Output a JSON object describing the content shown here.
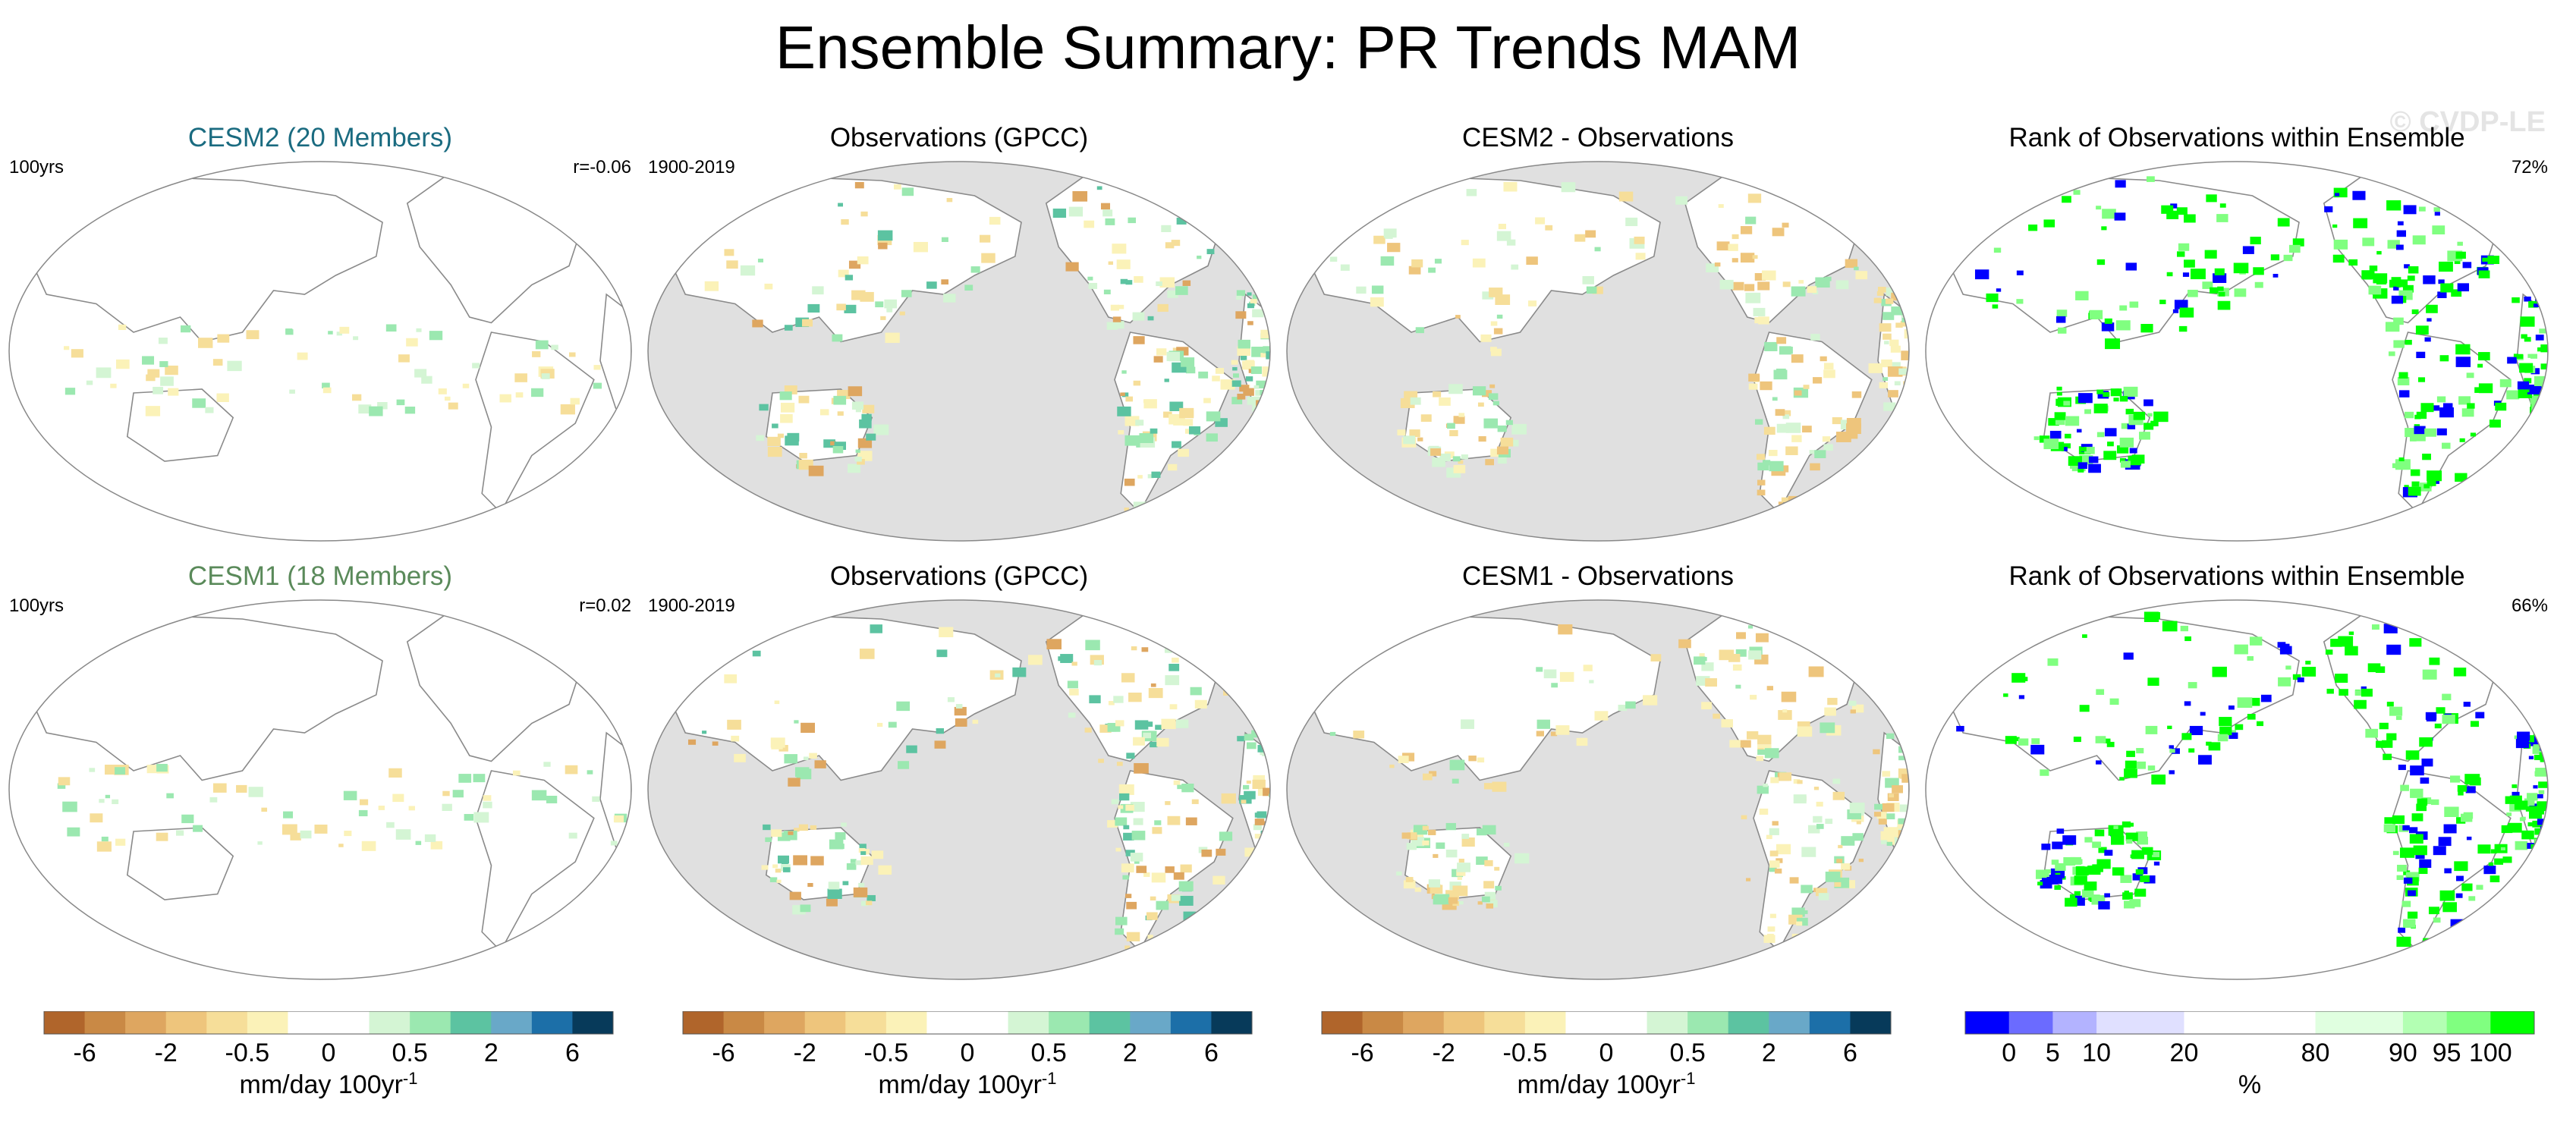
{
  "title": "Ensemble Summary: PR Trends MAM",
  "watermark": "© CVDP-LE",
  "rows": [
    {
      "panels": [
        {
          "title": "CESM2 (20 Members)",
          "title_color": "#1a6b80",
          "left_label": "100yrs",
          "right_label": "r=-0.06",
          "kind": "model"
        },
        {
          "title": "Observations (GPCC)",
          "title_color": "#000000",
          "left_label": "1900-2019",
          "right_label": "",
          "kind": "obs"
        },
        {
          "title": "CESM2 - Observations",
          "title_color": "#000000",
          "left_label": "",
          "right_label": "",
          "kind": "diff"
        },
        {
          "title": "Rank of Observations within Ensemble",
          "title_color": "#000000",
          "left_label": "",
          "right_label": "72%",
          "kind": "rank"
        }
      ]
    },
    {
      "panels": [
        {
          "title": "CESM1 (18 Members)",
          "title_color": "#5a8a5a",
          "left_label": "100yrs",
          "right_label": "r=0.02",
          "kind": "model"
        },
        {
          "title": "Observations (GPCC)",
          "title_color": "#000000",
          "left_label": "1900-2019",
          "right_label": "",
          "kind": "obs"
        },
        {
          "title": "CESM1 - Observations",
          "title_color": "#000000",
          "left_label": "",
          "right_label": "",
          "kind": "diff"
        },
        {
          "title": "Rank of Observations within Ensemble",
          "title_color": "#000000",
          "left_label": "",
          "right_label": "66%",
          "kind": "rank"
        }
      ]
    }
  ],
  "colorbars": [
    {
      "colors": [
        "#b0652b",
        "#c98945",
        "#dea660",
        "#eec57c",
        "#f6de99",
        "#fbf2b8",
        "#ffffff",
        "#ffffff",
        "#d4f5d4",
        "#9be8b0",
        "#5cc3a1",
        "#69a8c8",
        "#1c6fa8",
        "#073a5a"
      ],
      "tick_labels": [
        "-6",
        "-2",
        "-0.5",
        "0",
        "0.5",
        "2",
        "6"
      ],
      "tick_boundaries": [
        1,
        3,
        5,
        7,
        9,
        11,
        13
      ],
      "unit": "mm/day 100yr",
      "unit_sup": "-1"
    },
    {
      "colors": [
        "#b0652b",
        "#c98945",
        "#dea660",
        "#eec57c",
        "#f6de99",
        "#fbf2b8",
        "#ffffff",
        "#ffffff",
        "#d4f5d4",
        "#9be8b0",
        "#5cc3a1",
        "#69a8c8",
        "#1c6fa8",
        "#073a5a"
      ],
      "tick_labels": [
        "-6",
        "-2",
        "-0.5",
        "0",
        "0.5",
        "2",
        "6"
      ],
      "tick_boundaries": [
        1,
        3,
        5,
        7,
        9,
        11,
        13
      ],
      "unit": "mm/day 100yr",
      "unit_sup": "-1"
    },
    {
      "colors": [
        "#b0652b",
        "#c98945",
        "#dea660",
        "#eec57c",
        "#f6de99",
        "#fbf2b8",
        "#ffffff",
        "#ffffff",
        "#d4f5d4",
        "#9be8b0",
        "#5cc3a1",
        "#69a8c8",
        "#1c6fa8",
        "#073a5a"
      ],
      "tick_labels": [
        "-6",
        "-2",
        "-0.5",
        "0",
        "0.5",
        "2",
        "6"
      ],
      "tick_boundaries": [
        1,
        3,
        5,
        7,
        9,
        11,
        13
      ],
      "unit": "mm/day 100yr",
      "unit_sup": "-1"
    },
    {
      "colors": [
        "#0000ff",
        "#6b6bff",
        "#b3b3ff",
        "#e0e0ff",
        "#e0e0ff",
        "#ffffff",
        "#ffffff",
        "#ffffff",
        "#e0ffe0",
        "#e0ffe0",
        "#b3ffb3",
        "#80ff80",
        "#00ff00"
      ],
      "tick_labels": [
        "0",
        "5",
        "10",
        "20",
        "80",
        "90",
        "95",
        "100"
      ],
      "tick_boundaries": [
        1,
        2,
        3,
        5,
        8,
        10,
        11,
        12
      ],
      "unit": "%",
      "unit_sup": ""
    }
  ],
  "chart_data": {
    "type": "map",
    "title": "Ensemble Summary: PR Trends MAM",
    "variable": "Precipitation trend, March-April-May",
    "units": "mm/day 100yr-1",
    "colorbar_levels": [
      -6,
      -2,
      -0.5,
      0,
      0.5,
      2,
      6
    ],
    "rank_levels_percent": [
      0,
      5,
      10,
      20,
      80,
      90,
      95,
      100
    ],
    "panels": [
      {
        "row": 1,
        "title": "CESM2 (20 Members)",
        "period": "100yrs",
        "pattern_correlation": -0.06
      },
      {
        "row": 1,
        "title": "Observations (GPCC)",
        "period": "1900-2019"
      },
      {
        "row": 1,
        "title": "CESM2 - Observations"
      },
      {
        "row": 1,
        "title": "Rank of Observations within Ensemble",
        "area_within_10_90": "72%"
      },
      {
        "row": 2,
        "title": "CESM1 (18 Members)",
        "period": "100yrs",
        "pattern_correlation": 0.02
      },
      {
        "row": 2,
        "title": "Observations (GPCC)",
        "period": "1900-2019"
      },
      {
        "row": 2,
        "title": "CESM1 - Observations"
      },
      {
        "row": 2,
        "title": "Rank of Observations within Ensemble",
        "area_within_10_90": "66%"
      }
    ]
  }
}
